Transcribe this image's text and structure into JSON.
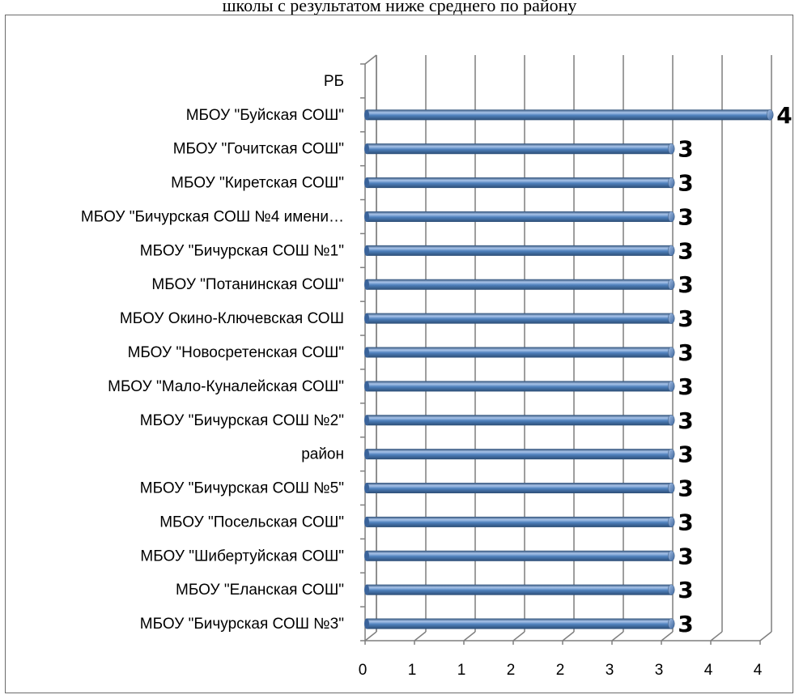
{
  "header": {
    "text": "школы с результатом ниже среднего по району"
  },
  "chart_data": {
    "type": "bar",
    "orientation": "horizontal",
    "style": "3d-cylinder",
    "title": "",
    "xlabel": "",
    "ylabel": "",
    "categories": [
      "РБ",
      "МБОУ \"Буйская СОШ\"",
      "МБОУ \"Гочитская СОШ\"",
      "МБОУ \"Киретская СОШ\"",
      "МБОУ \"Бичурская СОШ №4 имени…",
      "МБОУ \"Бичурская СОШ №1\"",
      "МБОУ \"Потанинская СОШ\"",
      "МБОУ Окино-Ключевская СОШ",
      "МБОУ \"Новосретенская СОШ\"",
      "МБОУ \"Мало-Куналейская СОШ\"",
      "МБОУ \"Бичурская СОШ №2\"",
      "район",
      "МБОУ \"Бичурская СОШ №5\"",
      "МБОУ \"Посельская СОШ\"",
      "МБОУ \"Шибертуйская СОШ\"",
      "МБОУ \"Еланская СОШ\"",
      "МБОУ \"Бичурская СОШ №3\""
    ],
    "values": [
      null,
      4.1,
      3.1,
      3.1,
      3.1,
      3.1,
      3.1,
      3.1,
      3.1,
      3.1,
      3.1,
      3.1,
      3.1,
      3.1,
      3.1,
      3.1,
      3.1
    ],
    "data_labels": [
      "",
      "4",
      "3",
      "3",
      "3",
      "3",
      "3",
      "3",
      "3",
      "3",
      "3",
      "3",
      "3",
      "3",
      "3",
      "3",
      "3"
    ],
    "xlim": [
      0,
      4
    ],
    "x_ticks": [
      0,
      0.5,
      1,
      1.5,
      2,
      2.5,
      3,
      3.5,
      4
    ],
    "x_tick_labels": [
      "0",
      "1",
      "1",
      "2",
      "2",
      "3",
      "3",
      "4",
      "4"
    ],
    "grid": true,
    "legend": "none",
    "colors": {
      "bar": "#4f81bd",
      "bar_light": "#a9c4ea",
      "bar_dark": "#2c4d75",
      "grid": "#7f7f7f"
    }
  }
}
